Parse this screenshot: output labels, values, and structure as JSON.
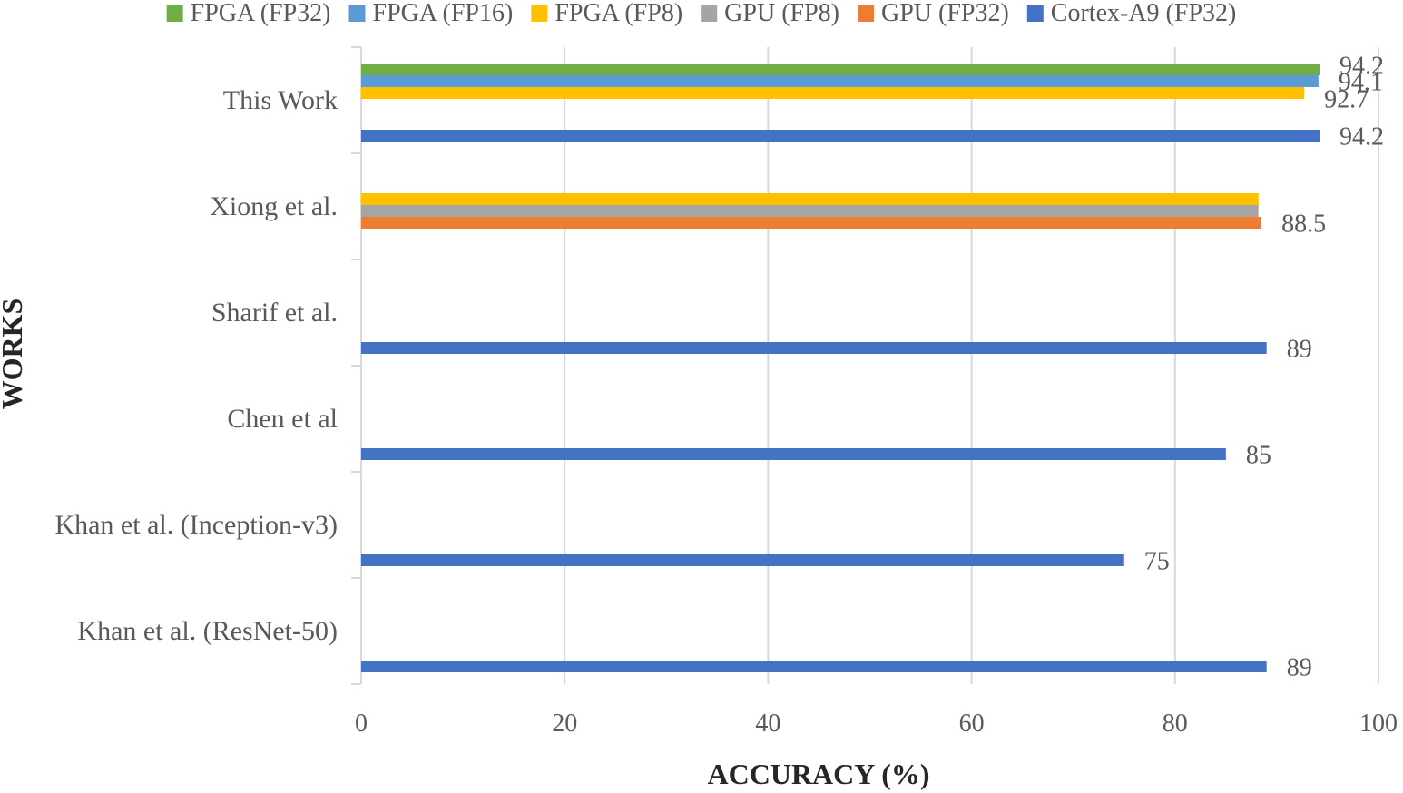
{
  "chart_data": {
    "type": "bar",
    "orientation": "horizontal",
    "title": "",
    "xlabel": "ACCURACY (%)",
    "ylabel": "WORKS",
    "xlim": [
      0,
      100
    ],
    "xticks": [
      "0",
      "20",
      "40",
      "60",
      "80",
      "100"
    ],
    "grid": true,
    "legend_position": "top",
    "categories": [
      "This Work",
      "Xiong et al.",
      "Sharif et al.",
      "Chen et al",
      "Khan et al. (Inception-v3)",
      "Khan et al. (ResNet-50)"
    ],
    "series": [
      {
        "name": "FPGA (FP32)",
        "color": "#70ad47",
        "values": [
          94.2,
          null,
          null,
          null,
          null,
          null
        ],
        "labels": [
          "94.2",
          null,
          null,
          null,
          null,
          null
        ]
      },
      {
        "name": "FPGA (FP16)",
        "color": "#5b9bd5",
        "values": [
          94.1,
          null,
          null,
          null,
          null,
          null
        ],
        "labels": [
          "94.1",
          null,
          null,
          null,
          null,
          null
        ]
      },
      {
        "name": "FPGA (FP8)",
        "color": "#ffc000",
        "values": [
          92.7,
          88.2,
          null,
          null,
          null,
          null
        ],
        "labels": [
          "92.7",
          null,
          null,
          null,
          null,
          null
        ]
      },
      {
        "name": "GPU (FP8)",
        "color": "#a5a5a5",
        "values": [
          null,
          88.2,
          null,
          null,
          null,
          null
        ],
        "labels": [
          null,
          null,
          null,
          null,
          null,
          null
        ]
      },
      {
        "name": "GPU (FP32)",
        "color": "#ed7d31",
        "values": [
          null,
          88.5,
          null,
          null,
          null,
          null
        ],
        "labels": [
          null,
          "88.5",
          null,
          null,
          null,
          null
        ]
      },
      {
        "name": "Cortex-A9 (FP32)",
        "color": "#4472c4",
        "values": [
          94.2,
          null,
          89,
          85,
          75,
          89
        ],
        "labels": [
          "94.2",
          null,
          "89",
          "85",
          "75",
          "89"
        ]
      }
    ]
  }
}
